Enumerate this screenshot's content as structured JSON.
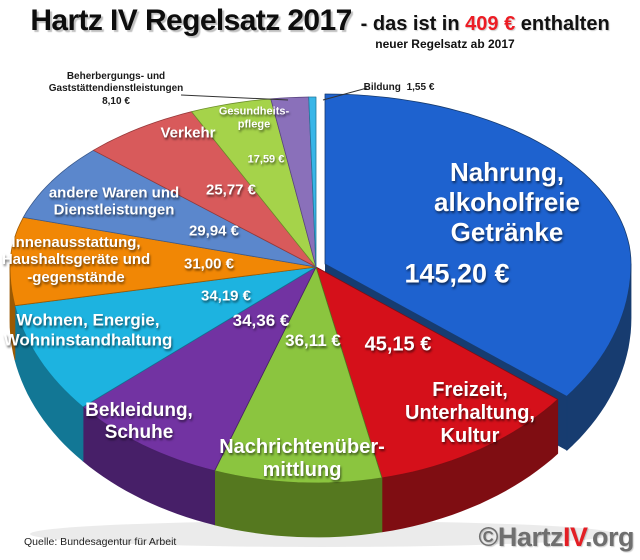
{
  "header": {
    "title": "Hartz IV Regelsatz 2017",
    "subtitle_dash": "- das ist in",
    "amount": "409 €",
    "subtitle_tail": "enthalten",
    "subnote": "neuer Regelsatz ab 2017"
  },
  "footer": {
    "source": "Quelle: Bundesagentur für Arbeit",
    "brand_copyright": "©Hartz",
    "brand_highlight": "IV",
    "brand_tld": ".org"
  },
  "chart_data": {
    "type": "pie",
    "title": "Hartz IV Regelsatz 2017 - das ist in 409 € enthalten",
    "subtitle": "neuer Regelsatz ab 2017",
    "unit": "€",
    "total": 409,
    "legend_position": "inside",
    "slices": [
      {
        "id": "nahrung",
        "label": "Nahrung,\nalkoholfreie\nGetränke",
        "value": 145.2,
        "value_label": "145,20 €",
        "color": "#1e62cf",
        "wall_color": "#173c70"
      },
      {
        "id": "freizeit",
        "label": "Freizeit,\nUnterhaltung,\nKultur",
        "value": 45.15,
        "value_label": "45,15 €",
        "color": "#d5101a",
        "wall_color": "#7f0d12"
      },
      {
        "id": "nachrichten",
        "label": "Nachrichtenüber-\nmittlung",
        "value": 36.11,
        "value_label": "36,11 €",
        "color": "#8bc53f",
        "wall_color": "#55781f"
      },
      {
        "id": "bekleidung",
        "label": "Bekleidung,\nSchuhe",
        "value": 34.36,
        "value_label": "34,36 €",
        "color": "#7233a2",
        "wall_color": "#471f68"
      },
      {
        "id": "wohnen",
        "label": "Wohnen, Energie,\nWohninstandhaltung",
        "value": 34.19,
        "value_label": "34,19 €",
        "color": "#1db3e0",
        "wall_color": "#127795"
      },
      {
        "id": "innen",
        "label": "Innenausstattung,\nHaushaltsgeräte und\n-gegenstände",
        "value": 31.0,
        "value_label": "31,00 €",
        "color": "#f18705",
        "wall_color": "#9c5a04"
      },
      {
        "id": "andere",
        "label": "andere Waren und\nDienstleistungen",
        "value": 29.94,
        "value_label": "29,94 €",
        "color": "#5b87cc",
        "wall_color": "#3a5a8d"
      },
      {
        "id": "verkehr",
        "label": "Verkehr",
        "value": 25.77,
        "value_label": "25,77 €",
        "color": "#d85a5b",
        "wall_color": "#96393a"
      },
      {
        "id": "gesundheit",
        "label": "Gesundheits-\npflege",
        "value": 17.59,
        "value_label": "17,59 €",
        "color": "#a5d34a",
        "wall_color": "#6d8f2c"
      },
      {
        "id": "beherbergung",
        "label": "Beherbergungs- und\nGaststättendienstleistungen",
        "value": 8.1,
        "value_label": "8,10 €",
        "color": "#8a70ba",
        "wall_color": "#5a4580"
      },
      {
        "id": "bildung",
        "label": "Bildung",
        "value": 1.55,
        "value_label": "1,55 €",
        "color": "#38b6e8",
        "wall_color": "#22789b"
      }
    ]
  }
}
